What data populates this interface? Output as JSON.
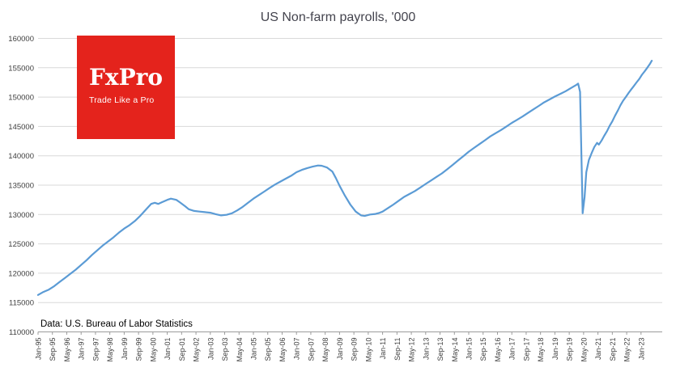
{
  "title": "US Non-farm payrolls, '000",
  "logo": {
    "brand": "FxPro",
    "tagline": "Trade Like a Pro",
    "background": "#e4231c"
  },
  "footer": {
    "source": "Data: U.S. Bureau of Labor Statistics"
  },
  "chart_data": {
    "type": "line",
    "title": "US Non-farm payrolls, '000",
    "xlabel": "",
    "ylabel": "",
    "ylim": [
      110000,
      160000
    ],
    "grid": true,
    "legend": "none",
    "y_ticks": [
      110000,
      115000,
      120000,
      125000,
      130000,
      135000,
      140000,
      145000,
      150000,
      155000,
      160000
    ],
    "x_tick_step_years": 0.6666667,
    "x_start_year": 1995,
    "x_tick_labels": [
      "Jan-95",
      "Sep-95",
      "May-96",
      "Jan-97",
      "Sep-97",
      "May-98",
      "Jan-99",
      "Sep-99",
      "May-00",
      "Jan-01",
      "Sep-01",
      "May-02",
      "Jan-03",
      "Sep-03",
      "May-04",
      "Jan-05",
      "Sep-05",
      "May-06",
      "Jan-07",
      "Sep-07",
      "May-08",
      "Jan-09",
      "Sep-09",
      "May-10",
      "Jan-11",
      "Sep-11",
      "May-12",
      "Jan-13",
      "Sep-13",
      "May-14",
      "Jan-15",
      "Sep-15",
      "May-16",
      "Jan-17",
      "Sep-17",
      "May-18",
      "Jan-19",
      "Sep-19",
      "May-20",
      "Jan-21",
      "Sep-21",
      "May-22",
      "Jan-23"
    ],
    "colors": {
      "line": "#5b9bd5",
      "grid": "#d9d9d9",
      "axis": "#9b9b9b",
      "tick_label": "#404040",
      "title": "#44444e"
    },
    "series": [
      {
        "name": "US Non-farm payrolls ('000)",
        "points": [
          [
            1995.0,
            116300
          ],
          [
            1995.25,
            116800
          ],
          [
            1995.5,
            117200
          ],
          [
            1995.75,
            117800
          ],
          [
            1996.0,
            118500
          ],
          [
            1996.25,
            119200
          ],
          [
            1996.5,
            119900
          ],
          [
            1996.75,
            120600
          ],
          [
            1997.0,
            121400
          ],
          [
            1997.25,
            122200
          ],
          [
            1997.5,
            123100
          ],
          [
            1997.75,
            123900
          ],
          [
            1998.0,
            124700
          ],
          [
            1998.25,
            125400
          ],
          [
            1998.5,
            126100
          ],
          [
            1998.75,
            126900
          ],
          [
            1999.0,
            127600
          ],
          [
            1999.25,
            128200
          ],
          [
            1999.5,
            128900
          ],
          [
            1999.75,
            129800
          ],
          [
            2000.0,
            130800
          ],
          [
            2000.25,
            131800
          ],
          [
            2000.42,
            132000
          ],
          [
            2000.58,
            131800
          ],
          [
            2000.75,
            132100
          ],
          [
            2001.0,
            132500
          ],
          [
            2001.17,
            132700
          ],
          [
            2001.42,
            132500
          ],
          [
            2001.58,
            132100
          ],
          [
            2001.83,
            131400
          ],
          [
            2002.0,
            130900
          ],
          [
            2002.25,
            130600
          ],
          [
            2002.5,
            130500
          ],
          [
            2002.75,
            130400
          ],
          [
            2003.0,
            130300
          ],
          [
            2003.25,
            130050
          ],
          [
            2003.5,
            129850
          ],
          [
            2003.75,
            129950
          ],
          [
            2004.0,
            130200
          ],
          [
            2004.25,
            130700
          ],
          [
            2004.5,
            131300
          ],
          [
            2004.75,
            132000
          ],
          [
            2005.0,
            132700
          ],
          [
            2005.25,
            133300
          ],
          [
            2005.5,
            133900
          ],
          [
            2005.75,
            134500
          ],
          [
            2006.0,
            135100
          ],
          [
            2006.25,
            135600
          ],
          [
            2006.5,
            136100
          ],
          [
            2006.75,
            136600
          ],
          [
            2007.0,
            137200
          ],
          [
            2007.25,
            137600
          ],
          [
            2007.5,
            137900
          ],
          [
            2007.75,
            138150
          ],
          [
            2008.0,
            138350
          ],
          [
            2008.17,
            138300
          ],
          [
            2008.42,
            138000
          ],
          [
            2008.67,
            137300
          ],
          [
            2008.83,
            136200
          ],
          [
            2009.0,
            134900
          ],
          [
            2009.25,
            133200
          ],
          [
            2009.5,
            131700
          ],
          [
            2009.75,
            130500
          ],
          [
            2010.0,
            129850
          ],
          [
            2010.17,
            129750
          ],
          [
            2010.42,
            130000
          ],
          [
            2010.67,
            130100
          ],
          [
            2010.83,
            130250
          ],
          [
            2011.0,
            130500
          ],
          [
            2011.25,
            131100
          ],
          [
            2011.5,
            131700
          ],
          [
            2011.75,
            132350
          ],
          [
            2012.0,
            133000
          ],
          [
            2012.25,
            133500
          ],
          [
            2012.5,
            134000
          ],
          [
            2012.75,
            134600
          ],
          [
            2013.0,
            135200
          ],
          [
            2013.25,
            135800
          ],
          [
            2013.5,
            136400
          ],
          [
            2013.75,
            137000
          ],
          [
            2014.0,
            137700
          ],
          [
            2014.25,
            138450
          ],
          [
            2014.5,
            139200
          ],
          [
            2014.75,
            139950
          ],
          [
            2015.0,
            140700
          ],
          [
            2015.25,
            141350
          ],
          [
            2015.5,
            142000
          ],
          [
            2015.75,
            142650
          ],
          [
            2016.0,
            143300
          ],
          [
            2016.25,
            143850
          ],
          [
            2016.5,
            144400
          ],
          [
            2016.75,
            145000
          ],
          [
            2017.0,
            145600
          ],
          [
            2017.25,
            146150
          ],
          [
            2017.5,
            146700
          ],
          [
            2017.75,
            147300
          ],
          [
            2018.0,
            147900
          ],
          [
            2018.25,
            148500
          ],
          [
            2018.5,
            149100
          ],
          [
            2018.75,
            149600
          ],
          [
            2019.0,
            150100
          ],
          [
            2019.25,
            150550
          ],
          [
            2019.5,
            151000
          ],
          [
            2019.75,
            151550
          ],
          [
            2020.0,
            152100
          ],
          [
            2020.08,
            152300
          ],
          [
            2020.17,
            150900
          ],
          [
            2020.29,
            130200
          ],
          [
            2020.38,
            133000
          ],
          [
            2020.46,
            137200
          ],
          [
            2020.58,
            139300
          ],
          [
            2020.71,
            140500
          ],
          [
            2020.83,
            141500
          ],
          [
            2020.96,
            142200
          ],
          [
            2021.04,
            141900
          ],
          [
            2021.17,
            142600
          ],
          [
            2021.29,
            143400
          ],
          [
            2021.42,
            144200
          ],
          [
            2021.54,
            145100
          ],
          [
            2021.67,
            145900
          ],
          [
            2021.79,
            146800
          ],
          [
            2021.92,
            147700
          ],
          [
            2022.04,
            148600
          ],
          [
            2022.17,
            149400
          ],
          [
            2022.29,
            150000
          ],
          [
            2022.42,
            150700
          ],
          [
            2022.54,
            151300
          ],
          [
            2022.67,
            151900
          ],
          [
            2022.79,
            152500
          ],
          [
            2022.92,
            153100
          ],
          [
            2023.04,
            153800
          ],
          [
            2023.17,
            154400
          ],
          [
            2023.29,
            155000
          ],
          [
            2023.42,
            155700
          ],
          [
            2023.5,
            156200
          ]
        ]
      }
    ]
  }
}
